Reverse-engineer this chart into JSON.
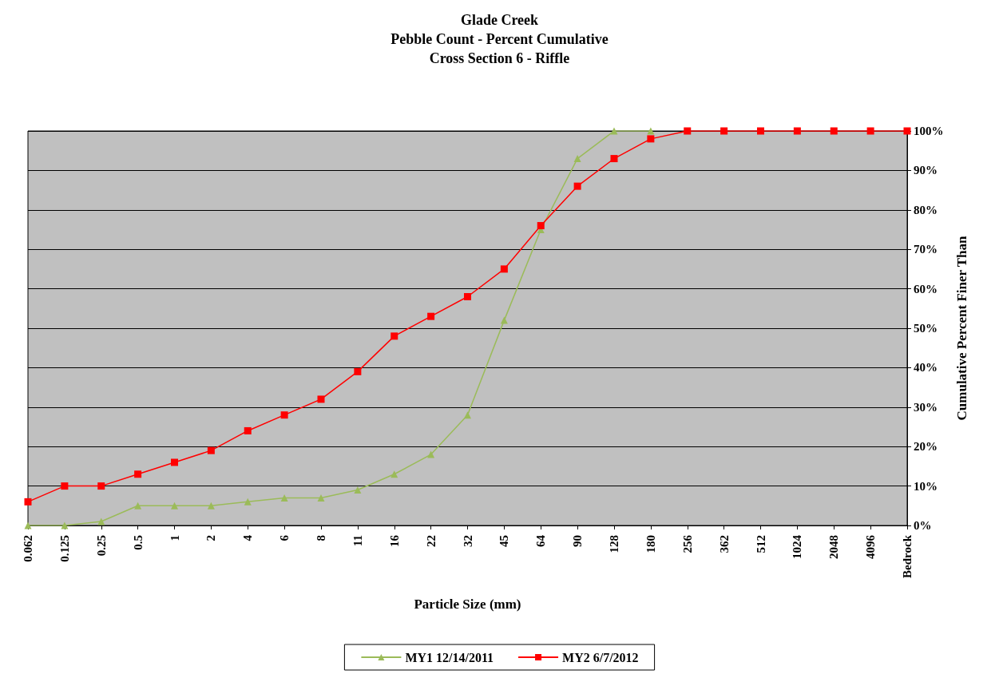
{
  "chart_data": {
    "type": "line",
    "title": "Glade Creek\nPebble Count - Percent Cumulative\nCross Section 6 - Riffle",
    "xlabel": "Particle Size (mm)",
    "y2label": "Cumulative Percent Finer Than",
    "categories": [
      "0.062",
      "0.125",
      "0.25",
      "0.5",
      "1",
      "2",
      "4",
      "6",
      "8",
      "11",
      "16",
      "22",
      "32",
      "45",
      "64",
      "90",
      "128",
      "180",
      "256",
      "362",
      "512",
      "1024",
      "2048",
      "4096",
      "Bedrock"
    ],
    "series": [
      {
        "name": "MY1 12/14/2011",
        "color": "#9bbb59",
        "marker": "triangle",
        "axis": "y2",
        "values": [
          0,
          0,
          1,
          5,
          5,
          5,
          6,
          7,
          7,
          9,
          13,
          18,
          28,
          52,
          75,
          93,
          100,
          100,
          null,
          null,
          null,
          null,
          null,
          null,
          null
        ]
      },
      {
        "name": "MY2 6/7/2012",
        "color": "#ff0000",
        "marker": "square",
        "axis": "y2",
        "values": [
          6,
          10,
          10,
          13,
          16,
          19,
          24,
          28,
          32,
          39,
          48,
          53,
          58,
          65,
          76,
          86,
          93,
          98,
          100,
          100,
          100,
          100,
          100,
          100,
          100
        ]
      }
    ],
    "y2lim": [
      0,
      100
    ],
    "y2ticks": [
      {
        "value": 0,
        "label": "0%"
      },
      {
        "value": 10,
        "label": "10%"
      },
      {
        "value": 20,
        "label": "20%"
      },
      {
        "value": 30,
        "label": "30%"
      },
      {
        "value": 40,
        "label": "40%"
      },
      {
        "value": 50,
        "label": "50%"
      },
      {
        "value": 60,
        "label": "60%"
      },
      {
        "value": 70,
        "label": "70%"
      },
      {
        "value": 80,
        "label": "80%"
      },
      {
        "value": 90,
        "label": "90%"
      },
      {
        "value": 100,
        "label": "100%"
      }
    ],
    "grid": "y",
    "legend": "bottom"
  }
}
